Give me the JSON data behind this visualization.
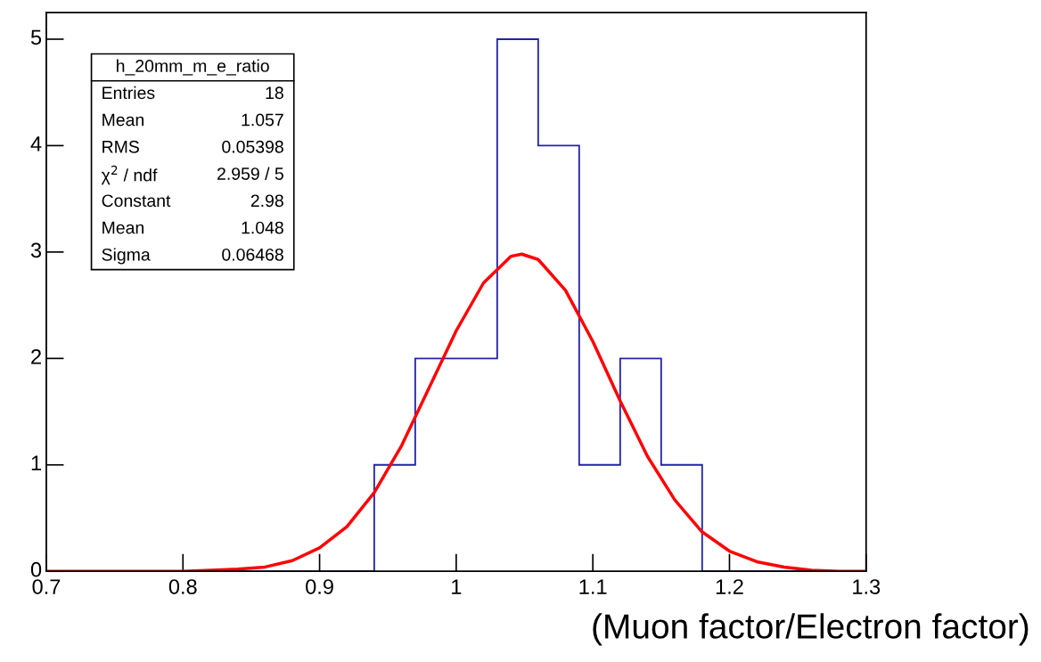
{
  "chart_data": {
    "type": "histogram",
    "series": [
      {
        "color": "#2222aa",
        "bins": [
          0.7,
          0.73,
          0.76,
          0.79,
          0.82,
          0.85,
          0.88,
          0.91,
          0.94,
          0.97,
          1.0,
          1.03,
          1.06,
          1.09,
          1.12,
          1.15,
          1.18,
          1.21,
          1.24,
          1.27,
          1.3
        ],
        "values": [
          0,
          0,
          0,
          0,
          0,
          0,
          0,
          0,
          1,
          2,
          2,
          5,
          4,
          1,
          2,
          1,
          0,
          0,
          0,
          0
        ]
      },
      {
        "type": "line",
        "color": "#ff0000",
        "x": [
          0.7,
          0.8,
          0.84,
          0.86,
          0.88,
          0.9,
          0.92,
          0.94,
          0.96,
          0.98,
          1.0,
          1.02,
          1.04,
          1.048,
          1.06,
          1.08,
          1.1,
          1.12,
          1.14,
          1.16,
          1.18,
          1.2,
          1.22,
          1.24,
          1.26,
          1.28,
          1.3
        ],
        "values": [
          0,
          0,
          0.02,
          0.04,
          0.1,
          0.22,
          0.42,
          0.74,
          1.18,
          1.72,
          2.26,
          2.71,
          2.96,
          2.98,
          2.93,
          2.64,
          2.16,
          1.6,
          1.08,
          0.67,
          0.37,
          0.19,
          0.09,
          0.04,
          0.01,
          0,
          0
        ]
      }
    ],
    "xlim": [
      0.7,
      1.3
    ],
    "xticks": [
      0.7,
      0.8,
      0.9,
      1,
      1.1,
      1.2,
      1.3
    ],
    "ylim": [
      0,
      5.25
    ],
    "yticks": [
      0,
      1,
      2,
      3,
      4,
      5
    ],
    "xlabel": "(Muon factor/Electron factor)",
    "grid": false,
    "annotations": [
      "h_20mm_m_e_ratio",
      "Entries\t18",
      "Mean\t1.057",
      "RMS\t0.05398",
      "χ$^{2}$ / ndf\t2.959 / 5",
      "Constant\t2.98",
      "Mean\t1.048",
      "Sigma\t0.06468"
    ]
  }
}
